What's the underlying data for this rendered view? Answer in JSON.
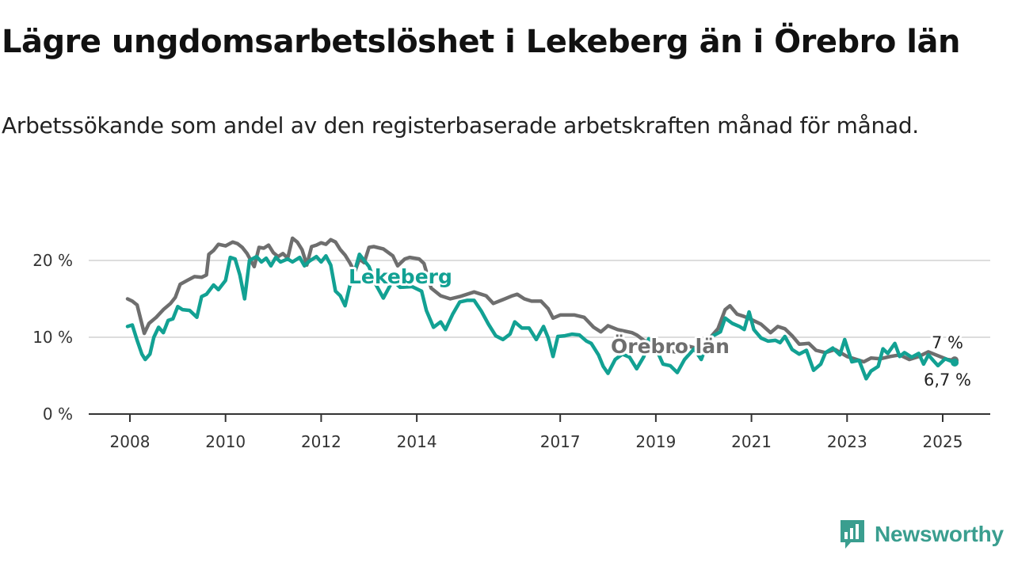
{
  "title": "Lägre ungdomsarbetslöshet i Lekeberg än i Örebro län",
  "subtitle": "Arbetssökande som andel av den registerbaserade arbetskraften månad för månad.",
  "brand": {
    "name": "Newsworthy",
    "icon": "bar-chart-logo-icon",
    "color": "#3a9e8f"
  },
  "chart_data": {
    "type": "line",
    "xlim": [
      2008,
      2025.9
    ],
    "ylim": [
      0,
      23
    ],
    "yticks": [
      {
        "value": 0,
        "label": "0 %"
      },
      {
        "value": 10,
        "label": "10 %"
      },
      {
        "value": 20,
        "label": "20 %"
      }
    ],
    "xticks": [
      {
        "value": 2008,
        "label": "2008"
      },
      {
        "value": 2010,
        "label": "2010"
      },
      {
        "value": 2012,
        "label": "2012"
      },
      {
        "value": 2014,
        "label": "2014"
      },
      {
        "value": 2017,
        "label": "2017"
      },
      {
        "value": 2019,
        "label": "2019"
      },
      {
        "value": 2021,
        "label": "2021"
      },
      {
        "value": 2023,
        "label": "2023"
      },
      {
        "value": 2025,
        "label": "2025"
      }
    ],
    "grid": true,
    "series": [
      {
        "name": "Örebro län",
        "color": "#6e6e6e",
        "end_label": "7 %",
        "points": [
          [
            2007.95,
            15
          ],
          [
            2008.05,
            14.7
          ],
          [
            2008.15,
            14.2
          ],
          [
            2008.3,
            10.5
          ],
          [
            2008.4,
            11.8
          ],
          [
            2008.55,
            12.6
          ],
          [
            2008.7,
            13.6
          ],
          [
            2008.85,
            14.4
          ],
          [
            2008.95,
            15.2
          ],
          [
            2009.05,
            16.9
          ],
          [
            2009.2,
            17.4
          ],
          [
            2009.35,
            17.9
          ],
          [
            2009.5,
            17.8
          ],
          [
            2009.6,
            18.1
          ],
          [
            2009.65,
            20.8
          ],
          [
            2009.75,
            21.3
          ],
          [
            2009.85,
            22.1
          ],
          [
            2010.0,
            21.9
          ],
          [
            2010.15,
            22.4
          ],
          [
            2010.25,
            22.2
          ],
          [
            2010.35,
            21.7
          ],
          [
            2010.45,
            20.9
          ],
          [
            2010.6,
            19.2
          ],
          [
            2010.7,
            21.7
          ],
          [
            2010.8,
            21.6
          ],
          [
            2010.9,
            22.0
          ],
          [
            2011.0,
            21.0
          ],
          [
            2011.1,
            20.5
          ],
          [
            2011.2,
            20.9
          ],
          [
            2011.3,
            20.3
          ],
          [
            2011.4,
            22.9
          ],
          [
            2011.5,
            22.4
          ],
          [
            2011.6,
            21.4
          ],
          [
            2011.7,
            19.4
          ],
          [
            2011.8,
            21.8
          ],
          [
            2011.9,
            22.0
          ],
          [
            2012.0,
            22.3
          ],
          [
            2012.1,
            22.1
          ],
          [
            2012.2,
            22.7
          ],
          [
            2012.3,
            22.4
          ],
          [
            2012.4,
            21.4
          ],
          [
            2012.5,
            20.7
          ],
          [
            2012.6,
            19.7
          ],
          [
            2012.7,
            18.5
          ],
          [
            2012.8,
            20.2
          ],
          [
            2012.9,
            19.7
          ],
          [
            2013.0,
            21.7
          ],
          [
            2013.1,
            21.8
          ],
          [
            2013.3,
            21.5
          ],
          [
            2013.5,
            20.6
          ],
          [
            2013.6,
            19.3
          ],
          [
            2013.75,
            20.2
          ],
          [
            2013.85,
            20.4
          ],
          [
            2014.05,
            20.2
          ],
          [
            2014.15,
            19.6
          ],
          [
            2014.3,
            16.4
          ],
          [
            2014.5,
            15.4
          ],
          [
            2014.7,
            15.0
          ],
          [
            2014.9,
            15.3
          ],
          [
            2015.2,
            15.9
          ],
          [
            2015.45,
            15.4
          ],
          [
            2015.6,
            14.4
          ],
          [
            2015.8,
            14.9
          ],
          [
            2016.0,
            15.4
          ],
          [
            2016.1,
            15.6
          ],
          [
            2016.25,
            15.0
          ],
          [
            2016.4,
            14.7
          ],
          [
            2016.6,
            14.7
          ],
          [
            2016.75,
            13.7
          ],
          [
            2016.85,
            12.5
          ],
          [
            2017.0,
            12.9
          ],
          [
            2017.3,
            12.9
          ],
          [
            2017.5,
            12.6
          ],
          [
            2017.7,
            11.3
          ],
          [
            2017.85,
            10.7
          ],
          [
            2018.0,
            11.5
          ],
          [
            2018.2,
            11.0
          ],
          [
            2018.5,
            10.6
          ],
          [
            2018.6,
            10.3
          ],
          [
            2018.75,
            9.6
          ],
          [
            2019.3,
            8.2
          ],
          [
            2019.5,
            8.0
          ],
          [
            2019.7,
            8.8
          ],
          [
            2019.9,
            8.5
          ],
          [
            2020.1,
            9.7
          ],
          [
            2020.3,
            11.1
          ],
          [
            2020.45,
            13.6
          ],
          [
            2020.55,
            14.1
          ],
          [
            2020.7,
            13.0
          ],
          [
            2020.85,
            12.7
          ],
          [
            2021.0,
            12.3
          ],
          [
            2021.2,
            11.7
          ],
          [
            2021.4,
            10.6
          ],
          [
            2021.55,
            11.4
          ],
          [
            2021.7,
            11.1
          ],
          [
            2021.85,
            10.2
          ],
          [
            2022.0,
            9.1
          ],
          [
            2022.2,
            9.2
          ],
          [
            2022.35,
            8.3
          ],
          [
            2022.55,
            8.0
          ],
          [
            2022.75,
            8.4
          ],
          [
            2023.0,
            7.5
          ],
          [
            2023.15,
            7.2
          ],
          [
            2023.35,
            6.8
          ],
          [
            2023.5,
            7.3
          ],
          [
            2023.7,
            7.2
          ],
          [
            2023.9,
            7.5
          ],
          [
            2024.1,
            7.7
          ],
          [
            2024.3,
            7.1
          ],
          [
            2024.5,
            7.5
          ],
          [
            2024.7,
            8.1
          ],
          [
            2024.9,
            7.6
          ],
          [
            2025.1,
            7.1
          ],
          [
            2025.25,
            7.0
          ]
        ]
      },
      {
        "name": "Lekeberg",
        "color": "#12a193",
        "end_label": "6,7 %",
        "points": [
          [
            2007.95,
            11.4
          ],
          [
            2008.05,
            11.6
          ],
          [
            2008.15,
            9.6
          ],
          [
            2008.25,
            7.8
          ],
          [
            2008.32,
            7.1
          ],
          [
            2008.42,
            7.8
          ],
          [
            2008.5,
            10.0
          ],
          [
            2008.6,
            11.3
          ],
          [
            2008.7,
            10.6
          ],
          [
            2008.8,
            12.2
          ],
          [
            2008.9,
            12.4
          ],
          [
            2009.0,
            14.0
          ],
          [
            2009.1,
            13.6
          ],
          [
            2009.25,
            13.5
          ],
          [
            2009.4,
            12.6
          ],
          [
            2009.5,
            15.3
          ],
          [
            2009.6,
            15.6
          ],
          [
            2009.75,
            16.8
          ],
          [
            2009.85,
            16.2
          ],
          [
            2010.0,
            17.4
          ],
          [
            2010.1,
            20.4
          ],
          [
            2010.2,
            20.2
          ],
          [
            2010.3,
            18.1
          ],
          [
            2010.4,
            15.0
          ],
          [
            2010.5,
            20.0
          ],
          [
            2010.65,
            20.5
          ],
          [
            2010.75,
            19.8
          ],
          [
            2010.85,
            20.3
          ],
          [
            2010.95,
            19.3
          ],
          [
            2011.05,
            20.4
          ],
          [
            2011.15,
            19.8
          ],
          [
            2011.3,
            20.2
          ],
          [
            2011.4,
            19.8
          ],
          [
            2011.55,
            20.4
          ],
          [
            2011.65,
            19.3
          ],
          [
            2011.75,
            19.9
          ],
          [
            2011.9,
            20.5
          ],
          [
            2012.0,
            19.8
          ],
          [
            2012.1,
            20.6
          ],
          [
            2012.2,
            19.4
          ],
          [
            2012.3,
            16.0
          ],
          [
            2012.4,
            15.4
          ],
          [
            2012.5,
            14.1
          ],
          [
            2012.6,
            16.7
          ],
          [
            2012.7,
            18.6
          ],
          [
            2012.8,
            20.8
          ],
          [
            2013.0,
            19.2
          ],
          [
            2013.15,
            16.8
          ],
          [
            2013.3,
            15.1
          ],
          [
            2013.5,
            17.4
          ],
          [
            2013.65,
            16.5
          ],
          [
            2013.9,
            16.6
          ],
          [
            2014.1,
            16.0
          ],
          [
            2014.2,
            13.5
          ],
          [
            2014.35,
            11.3
          ],
          [
            2014.5,
            12.0
          ],
          [
            2014.6,
            11.0
          ],
          [
            2014.75,
            13.0
          ],
          [
            2014.9,
            14.6
          ],
          [
            2015.05,
            14.8
          ],
          [
            2015.2,
            14.8
          ],
          [
            2015.35,
            13.4
          ],
          [
            2015.5,
            11.7
          ],
          [
            2015.65,
            10.2
          ],
          [
            2015.8,
            9.7
          ],
          [
            2015.95,
            10.4
          ],
          [
            2016.05,
            12.0
          ],
          [
            2016.2,
            11.2
          ],
          [
            2016.35,
            11.2
          ],
          [
            2016.5,
            9.7
          ],
          [
            2016.65,
            11.4
          ],
          [
            2016.75,
            9.9
          ],
          [
            2016.85,
            7.5
          ],
          [
            2016.95,
            10.1
          ],
          [
            2017.1,
            10.2
          ],
          [
            2017.25,
            10.4
          ],
          [
            2017.4,
            10.3
          ],
          [
            2017.55,
            9.5
          ],
          [
            2017.65,
            9.2
          ],
          [
            2017.8,
            7.7
          ],
          [
            2017.9,
            6.2
          ],
          [
            2018.0,
            5.3
          ],
          [
            2018.15,
            7.1
          ],
          [
            2018.3,
            7.8
          ],
          [
            2018.45,
            7.4
          ],
          [
            2018.6,
            5.9
          ],
          [
            2018.75,
            7.5
          ],
          [
            2018.85,
            9.8
          ],
          [
            2018.95,
            9.3
          ],
          [
            2019.15,
            6.5
          ],
          [
            2019.3,
            6.3
          ],
          [
            2019.45,
            5.4
          ],
          [
            2019.6,
            7.1
          ],
          [
            2019.8,
            8.5
          ],
          [
            2019.95,
            7.1
          ],
          [
            2020.05,
            8.8
          ],
          [
            2020.2,
            10.2
          ],
          [
            2020.35,
            10.7
          ],
          [
            2020.45,
            12.5
          ],
          [
            2020.6,
            11.8
          ],
          [
            2020.75,
            11.4
          ],
          [
            2020.85,
            11.0
          ],
          [
            2020.95,
            13.3
          ],
          [
            2021.05,
            11.0
          ],
          [
            2021.2,
            9.9
          ],
          [
            2021.35,
            9.5
          ],
          [
            2021.5,
            9.6
          ],
          [
            2021.6,
            9.3
          ],
          [
            2021.7,
            10.1
          ],
          [
            2021.85,
            8.4
          ],
          [
            2022.0,
            7.8
          ],
          [
            2022.15,
            8.3
          ],
          [
            2022.3,
            5.7
          ],
          [
            2022.45,
            6.5
          ],
          [
            2022.55,
            8.0
          ],
          [
            2022.7,
            8.6
          ],
          [
            2022.85,
            7.7
          ],
          [
            2022.95,
            9.7
          ],
          [
            2023.1,
            6.8
          ],
          [
            2023.25,
            7.0
          ],
          [
            2023.4,
            4.6
          ],
          [
            2023.5,
            5.6
          ],
          [
            2023.65,
            6.2
          ],
          [
            2023.75,
            8.5
          ],
          [
            2023.85,
            7.9
          ],
          [
            2024.0,
            9.2
          ],
          [
            2024.1,
            7.5
          ],
          [
            2024.2,
            8.0
          ],
          [
            2024.35,
            7.4
          ],
          [
            2024.5,
            7.9
          ],
          [
            2024.6,
            6.5
          ],
          [
            2024.7,
            7.7
          ],
          [
            2024.8,
            7.0
          ],
          [
            2024.9,
            6.3
          ],
          [
            2025.05,
            7.2
          ],
          [
            2025.25,
            6.7
          ]
        ]
      }
    ]
  }
}
